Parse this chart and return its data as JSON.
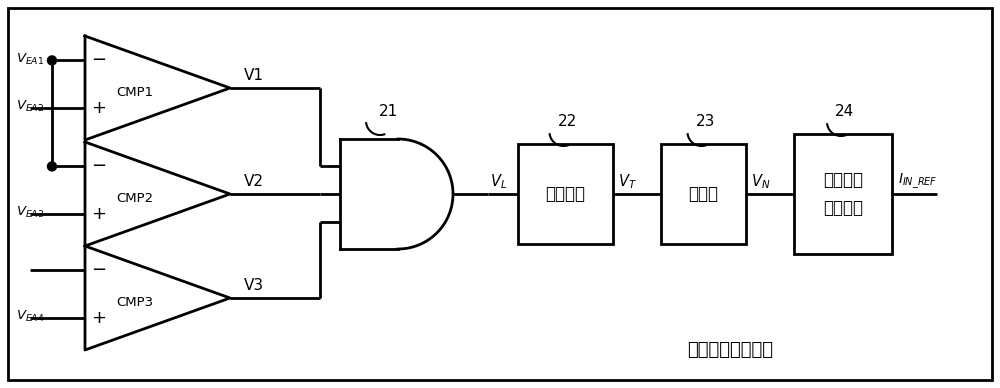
{
  "bg_color": "#ffffff",
  "line_color": "#000000",
  "line_width": 2.0,
  "fig_width": 10.0,
  "fig_height": 3.88,
  "bottom_label": "基准电流调节电路",
  "cmp1_label": "CMP1",
  "cmp2_label": "CMP2",
  "cmp3_label": "CMP3",
  "v1_label": "V1",
  "v2_label": "V2",
  "v3_label": "V3",
  "vea1_label": "V_{EA1}",
  "vea2_label": "V_{EA2}",
  "vea3_label": "V_{EA3}",
  "vea4_label": "V_{EA4}",
  "gate_num": "21",
  "vl_label": "V_L",
  "box22_label": "计时电路",
  "box22_num": "22",
  "vt_label": "V_T",
  "box23_label": "计数器",
  "box23_num": "23",
  "vn_label": "V_N",
  "box24_label1": "基准信号",
  "box24_label2": "加减电路",
  "box24_num": "24",
  "out_label": "I_{IN\\_REF}"
}
